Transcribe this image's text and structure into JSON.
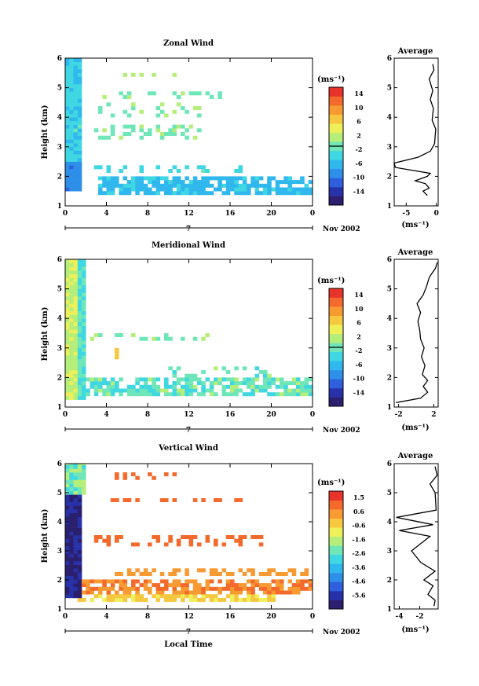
{
  "chart_data": [
    {
      "type": "heatmap",
      "title": "Zonal Wind",
      "ylabel": "Height (km)",
      "ylim": [
        1,
        6
      ],
      "yticks": [
        "1",
        "2",
        "3",
        "4",
        "5",
        "6"
      ],
      "xlim": [
        0,
        24
      ],
      "xticks": [
        "0",
        "4",
        "8",
        "12",
        "16",
        "20",
        "0"
      ],
      "day_label": "7",
      "date_label": "Nov 2002",
      "colorbar": {
        "unit": "(ms⁻¹)",
        "labels": [
          "14",
          "10",
          "6",
          "2",
          "-2",
          "-6",
          "-10",
          "-14"
        ],
        "range": [
          -16,
          16
        ],
        "zero_line": 0
      },
      "average_profile": {
        "title": "Average",
        "xlabel": "(ms⁻¹)",
        "xticks": [
          "-5",
          "0"
        ],
        "xlim": [
          -7,
          0.3
        ],
        "yticks": [
          "1",
          "2",
          "3",
          "4",
          "5",
          "6"
        ],
        "points": [
          [
            -1.5,
            1.35
          ],
          [
            -2.2,
            1.5
          ],
          [
            -1.2,
            1.6
          ],
          [
            -1.8,
            1.75
          ],
          [
            -3.5,
            1.85
          ],
          [
            -1.5,
            2.0
          ],
          [
            -1.0,
            2.1
          ],
          [
            -6.8,
            2.3
          ],
          [
            -7.0,
            2.45
          ],
          [
            -3.0,
            2.65
          ],
          [
            -1.0,
            2.85
          ],
          [
            -0.3,
            3.1
          ],
          [
            -0.1,
            3.6
          ],
          [
            -0.7,
            3.9
          ],
          [
            -0.5,
            4.3
          ],
          [
            -1.0,
            4.6
          ],
          [
            -0.6,
            4.9
          ],
          [
            -1.2,
            5.3
          ],
          [
            -0.4,
            5.6
          ],
          [
            -0.6,
            5.8
          ]
        ]
      }
    },
    {
      "type": "heatmap",
      "title": "Meridional Wind",
      "ylabel": "Height (km)",
      "ylim": [
        1,
        6
      ],
      "yticks": [
        "1",
        "2",
        "3",
        "4",
        "5",
        "6"
      ],
      "xlim": [
        0,
        24
      ],
      "xticks": [
        "0",
        "4",
        "8",
        "12",
        "16",
        "20",
        "0"
      ],
      "day_label": "7",
      "date_label": "Nov 2002",
      "colorbar": {
        "unit": "(ms⁻¹)",
        "labels": [
          "14",
          "10",
          "6",
          "2",
          "-2",
          "-6",
          "-10",
          "-14"
        ],
        "range": [
          -16,
          16
        ],
        "zero_line": 0
      },
      "average_profile": {
        "title": "Average",
        "xlabel": "(ms⁻¹)",
        "xticks": [
          "-2",
          "2"
        ],
        "xlim": [
          -2.5,
          2.5
        ],
        "yticks": [
          "1",
          "2",
          "3",
          "4",
          "5",
          "6"
        ],
        "points": [
          [
            -2.3,
            1.15
          ],
          [
            0.5,
            1.3
          ],
          [
            1.3,
            1.5
          ],
          [
            0.8,
            1.7
          ],
          [
            1.3,
            1.9
          ],
          [
            0.7,
            2.1
          ],
          [
            1.0,
            2.4
          ],
          [
            0.6,
            2.7
          ],
          [
            0.9,
            3.0
          ],
          [
            0.5,
            3.3
          ],
          [
            0.4,
            3.6
          ],
          [
            0.2,
            3.9
          ],
          [
            0.5,
            4.2
          ],
          [
            0.1,
            4.5
          ],
          [
            0.8,
            4.8
          ],
          [
            1.2,
            5.1
          ],
          [
            1.5,
            5.4
          ],
          [
            2.2,
            5.7
          ],
          [
            2.4,
            5.9
          ]
        ]
      }
    },
    {
      "type": "heatmap",
      "title": "Vertical Wind",
      "ylabel": "Height (km)",
      "xlabel": "Local Time",
      "ylim": [
        1,
        6
      ],
      "yticks": [
        "1",
        "2",
        "3",
        "4",
        "5",
        "6"
      ],
      "xlim": [
        0,
        24
      ],
      "xticks": [
        "0",
        "4",
        "8",
        "12",
        "16",
        "20",
        "0"
      ],
      "day_label": "7",
      "date_label": "Nov 2002",
      "colorbar": {
        "unit": "(ms⁻¹)",
        "labels": [
          "1.5",
          "0.6",
          "-0.6",
          "-1.6",
          "-2.6",
          "-3.6",
          "-4.6",
          "-5.6"
        ],
        "range": [
          -6.1,
          2.0
        ]
      },
      "average_profile": {
        "title": "Average",
        "xlabel": "(ms⁻¹)",
        "xticks": [
          "-4",
          "-2"
        ],
        "xlim": [
          -4.5,
          -0.2
        ],
        "yticks": [
          "1",
          "2",
          "3",
          "4",
          "5",
          "6"
        ],
        "points": [
          [
            -0.6,
            1.1
          ],
          [
            -0.5,
            1.3
          ],
          [
            -1.2,
            1.5
          ],
          [
            -0.7,
            1.8
          ],
          [
            -1.6,
            2.0
          ],
          [
            -0.5,
            2.3
          ],
          [
            -1.9,
            2.6
          ],
          [
            -2.8,
            3.0
          ],
          [
            -1.0,
            3.5
          ],
          [
            -4.0,
            3.7
          ],
          [
            -0.7,
            3.9
          ],
          [
            -4.3,
            4.15
          ],
          [
            -0.4,
            4.4
          ],
          [
            -0.5,
            5.0
          ],
          [
            -1.0,
            5.3
          ],
          [
            -0.3,
            5.6
          ],
          [
            -0.5,
            5.9
          ]
        ]
      }
    }
  ]
}
